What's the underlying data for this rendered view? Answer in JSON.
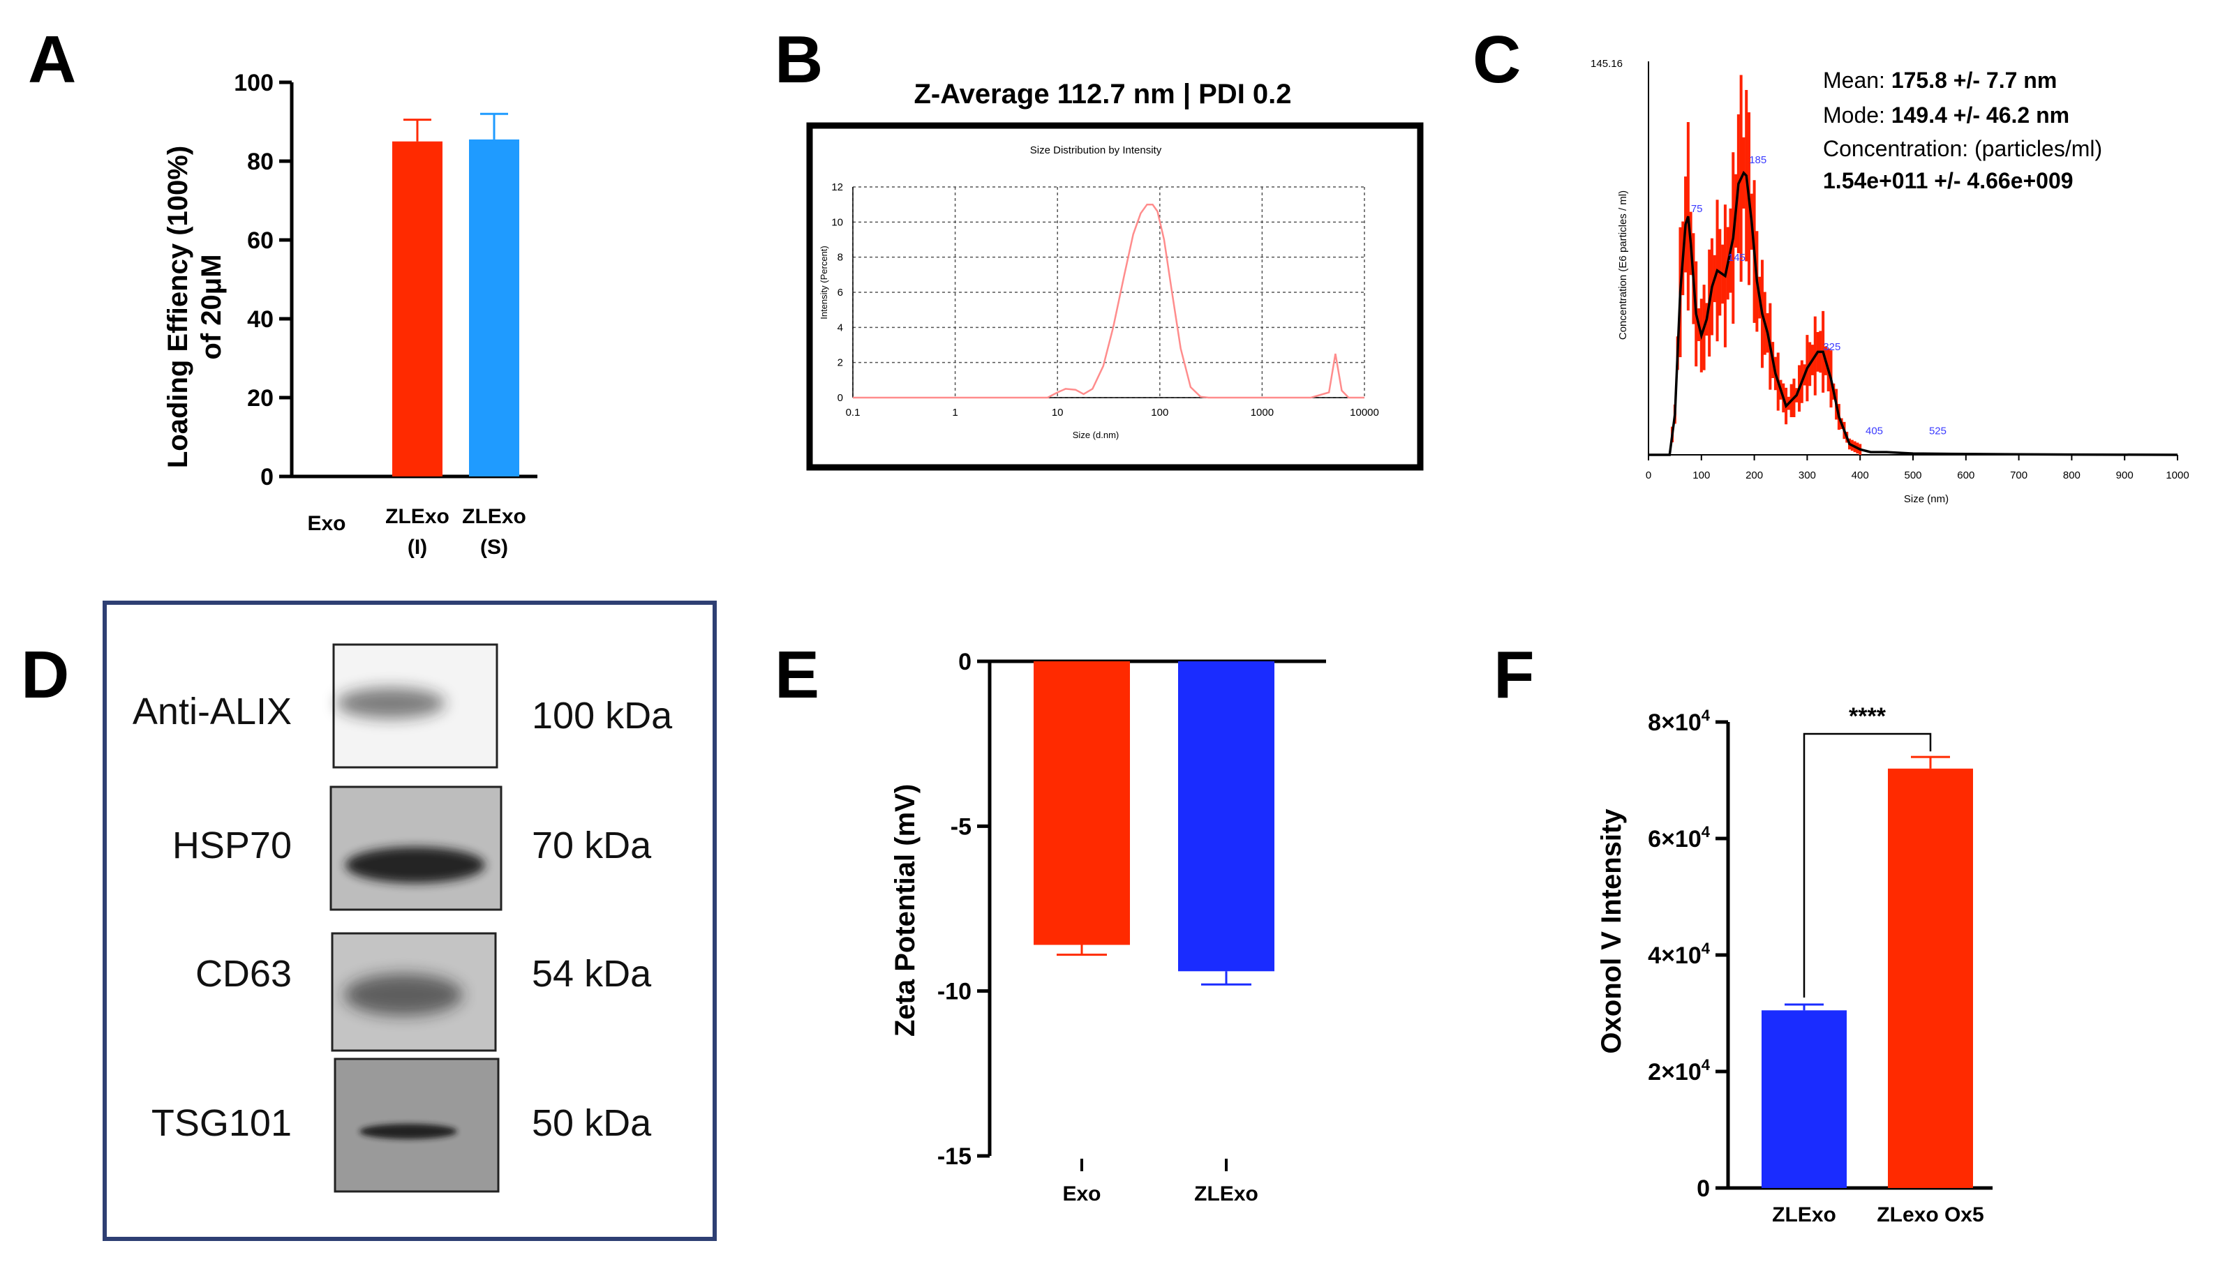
{
  "panel_letters": [
    "A",
    "B",
    "C",
    "D",
    "E",
    "F"
  ],
  "colors": {
    "red": "#ff2a00",
    "blue_light": "#1f9bff",
    "blue": "#1a2cff",
    "navy_border": "#2e3f73",
    "dls_curve": "#ff8c8c",
    "nta_red": "#ff2200",
    "nta_label": "#3b3bff"
  },
  "chart_data": [
    {
      "panel": "A",
      "type": "bar",
      "categories": [
        "Exo",
        "ZLExo (I)",
        "ZLExo (S)"
      ],
      "category_lines": [
        [
          "Exo"
        ],
        [
          "ZLExo",
          "(I)"
        ],
        [
          "ZLExo",
          "(S)"
        ]
      ],
      "values": [
        0,
        85,
        85.5
      ],
      "errors": [
        0,
        5.5,
        6.5
      ],
      "bar_colors": [
        "none",
        "#ff2a00",
        "#1f9bff"
      ],
      "ylabel_lines": [
        "Loading Effiency (100%)",
        "of 20μM"
      ],
      "ylim": [
        0,
        100
      ],
      "yticks": [
        0,
        20,
        40,
        60,
        80,
        100
      ]
    },
    {
      "panel": "B",
      "type": "line",
      "title": "Z-Average 112.7 nm | PDI 0.2",
      "inner_title": "Size Distribution by Intensity",
      "xlabel": "Size (d.nm)",
      "ylabel": "Intensity (Percent)",
      "xscale": "log",
      "xlim": [
        0.1,
        10000
      ],
      "xticks": [
        "0.1",
        "1",
        "10",
        "100",
        "1000",
        "10000"
      ],
      "ylim": [
        0,
        12
      ],
      "yticks": [
        "0",
        "2",
        "4",
        "6",
        "8",
        "10",
        "12"
      ],
      "series": [
        {
          "name": "intensity",
          "x": [
            0.1,
            8,
            10,
            12,
            15,
            18,
            22,
            28,
            35,
            45,
            55,
            65,
            75,
            85,
            95,
            110,
            130,
            160,
            200,
            250,
            300,
            400,
            1000,
            3000,
            4500,
            5200,
            6000,
            7000,
            10000
          ],
          "y": [
            0,
            0,
            0.3,
            0.5,
            0.45,
            0.2,
            0.5,
            1.8,
            4.0,
            7.0,
            9.3,
            10.5,
            11.0,
            11.0,
            10.6,
            9.0,
            6.2,
            2.8,
            0.6,
            0.05,
            0,
            0,
            0,
            0,
            0.3,
            2.5,
            0.4,
            0,
            0
          ]
        }
      ]
    },
    {
      "panel": "C",
      "type": "line",
      "ymax_label": "145.16",
      "xlabel": "Size (nm)",
      "ylabel": "Concentration (E6 particles / ml)",
      "xlim": [
        0,
        1000
      ],
      "xticks": [
        "0",
        "100",
        "200",
        "300",
        "400",
        "500",
        "600",
        "700",
        "800",
        "900",
        "1000"
      ],
      "ylim": [
        0,
        145.16
      ],
      "stats": [
        {
          "label": "Mean: ",
          "value": "175.8 +/- 7.7 nm"
        },
        {
          "label": "Mode: ",
          "value": "149.4 +/- 46.2 nm"
        },
        {
          "label": "Concentration: (particles/ml)",
          "value": ""
        },
        {
          "label": "",
          "value": "1.54e+011 +/- 4.66e+009"
        }
      ],
      "peak_labels": [
        "75",
        "145",
        "185",
        "325",
        "405",
        "525"
      ],
      "peak_x": [
        75,
        145,
        185,
        325,
        405,
        525
      ],
      "peak_y": [
        88,
        70,
        106,
        37,
        6,
        6
      ],
      "series": [
        {
          "name": "mean",
          "x": [
            0,
            40,
            50,
            60,
            70,
            75,
            80,
            90,
            100,
            110,
            120,
            130,
            145,
            160,
            170,
            180,
            185,
            195,
            205,
            215,
            225,
            240,
            260,
            280,
            300,
            320,
            330,
            345,
            360,
            380,
            400,
            420,
            450,
            500,
            600,
            700,
            800,
            1000
          ],
          "y": [
            0,
            0,
            15,
            60,
            85,
            88,
            78,
            52,
            44,
            50,
            62,
            68,
            66,
            80,
            100,
            104,
            103,
            86,
            64,
            52,
            45,
            30,
            18,
            22,
            32,
            38,
            38,
            28,
            14,
            4,
            2,
            1,
            1,
            0.5,
            0.3,
            0.2,
            0.1,
            0
          ]
        }
      ]
    },
    {
      "panel": "E",
      "type": "bar",
      "categories": [
        "Exo",
        "ZLExo"
      ],
      "values": [
        -8.6,
        -9.4
      ],
      "errors": [
        0.3,
        0.4
      ],
      "bar_colors": [
        "#ff2a00",
        "#1a2cff"
      ],
      "ylabel": "Zeta Potential (mV)",
      "ylim": [
        -15,
        0
      ],
      "yticks": [
        "0",
        "-5",
        "-10",
        "-15"
      ],
      "ytick_values": [
        0,
        -5,
        -10,
        -15
      ]
    },
    {
      "panel": "F",
      "type": "bar",
      "categories": [
        "ZLExo",
        "ZLexo Ox5"
      ],
      "values": [
        30500,
        72000
      ],
      "errors": [
        1000,
        2000
      ],
      "bar_colors": [
        "#1a2cff",
        "#ff2a00"
      ],
      "ylabel": "Oxonol V Intensity",
      "ylim": [
        0,
        80000
      ],
      "ytick_values": [
        0,
        20000,
        40000,
        60000,
        80000
      ],
      "ytick_labels": [
        {
          "base": "0",
          "exp": ""
        },
        {
          "base": "2×10",
          "exp": "4"
        },
        {
          "base": "4×10",
          "exp": "4"
        },
        {
          "base": "6×10",
          "exp": "4"
        },
        {
          "base": "8×10",
          "exp": "4"
        }
      ],
      "significance": "****"
    }
  ],
  "western_blot": {
    "panel": "D",
    "rows": [
      {
        "protein": "Anti-ALIX",
        "size": "100 kDa"
      },
      {
        "protein": "HSP70",
        "size": "70 kDa"
      },
      {
        "protein": "CD63",
        "size": "54 kDa"
      },
      {
        "protein": "TSG101",
        "size": "50 kDa"
      }
    ]
  }
}
